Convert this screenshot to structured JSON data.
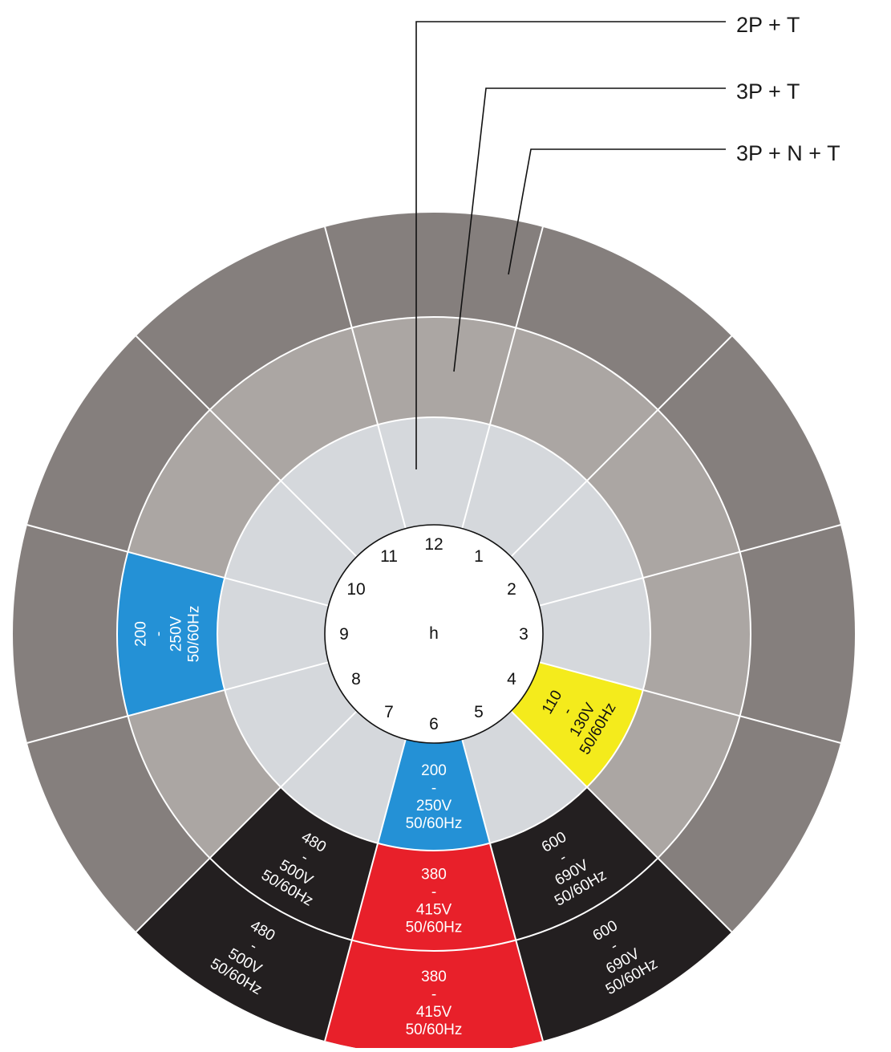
{
  "callouts": [
    {
      "id": "inner",
      "label": "2P + T"
    },
    {
      "id": "middle",
      "label": "3P + T"
    },
    {
      "id": "outer",
      "label": "3P + N + T"
    }
  ],
  "clock": {
    "hours": [
      "12",
      "1",
      "2",
      "3",
      "4",
      "5",
      "6",
      "7",
      "8",
      "9",
      "10",
      "11"
    ],
    "center_label": "h"
  },
  "colors": {
    "outer_ring": "#857f7d",
    "middle_ring": "#aba6a3",
    "inner_ring": "#d5d8dc",
    "hub": "#ffffff",
    "blue": "#2491d6",
    "red": "#e8202a",
    "yellow": "#f4eb1c",
    "black": "#231f20"
  },
  "segments": [
    {
      "id": "inner-6h",
      "ring": "inner",
      "hour": 6,
      "color": "blue",
      "lines": [
        "200",
        "-",
        "250V",
        "50/60Hz"
      ]
    },
    {
      "id": "inner-4h",
      "ring": "inner",
      "hour": 4,
      "color": "yellow",
      "lines": [
        "110",
        "-",
        "130V",
        "50/60Hz"
      ]
    },
    {
      "id": "middle-9h",
      "ring": "middle",
      "hour": 9,
      "color": "blue",
      "lines": [
        "200",
        "-",
        "250V",
        "50/60Hz"
      ]
    },
    {
      "id": "middle-6h",
      "ring": "middle",
      "hour": 6,
      "color": "red",
      "lines": [
        "380",
        "-",
        "415V",
        "50/60Hz"
      ]
    },
    {
      "id": "middle-7h",
      "ring": "middle",
      "hour": 7,
      "color": "black",
      "lines": [
        "480",
        "-",
        "500V",
        "50/60Hz"
      ]
    },
    {
      "id": "middle-5h",
      "ring": "middle",
      "hour": 5,
      "color": "black",
      "lines": [
        "600",
        "-",
        "690V",
        "50/60Hz"
      ]
    },
    {
      "id": "outer-6h",
      "ring": "outer",
      "hour": 6,
      "color": "red",
      "lines": [
        "380",
        "-",
        "415V",
        "50/60Hz"
      ]
    },
    {
      "id": "outer-7h",
      "ring": "outer",
      "hour": 7,
      "color": "black",
      "lines": [
        "480",
        "-",
        "500V",
        "50/60Hz"
      ]
    },
    {
      "id": "outer-5h",
      "ring": "outer",
      "hour": 5,
      "color": "black",
      "lines": [
        "600",
        "-",
        "690V",
        "50/60Hz"
      ]
    }
  ]
}
